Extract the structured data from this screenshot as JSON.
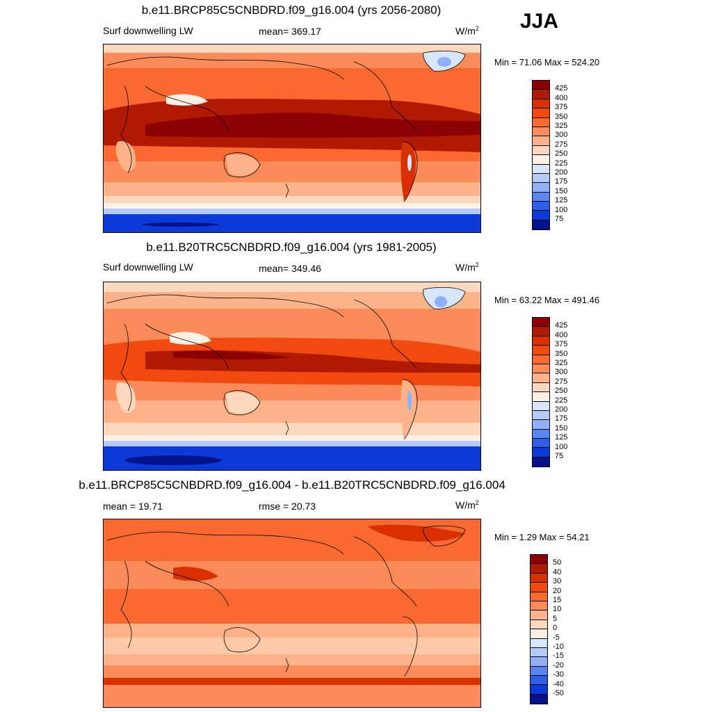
{
  "season": "JJA",
  "panels": [
    {
      "title": "b.e11.BRCP85C5CNBDRD.f09_g16.004 (yrs 2056-2080)",
      "left_label": "Surf downwelling LW",
      "mean_label": "mean= 369.17",
      "units": "W/m",
      "units_sup": "2",
      "minmax": "Min =  71.06 Max = 524.20",
      "scale": "abs"
    },
    {
      "title": "b.e11.B20TRC5CNBDRD.f09_g16.004 (yrs 1981-2005)",
      "left_label": "Surf downwelling LW",
      "mean_label": "mean= 349.46",
      "units": "W/m",
      "units_sup": "2",
      "minmax": "Min =  63.22 Max = 491.46",
      "scale": "abs"
    },
    {
      "title": "b.e11.BRCP85C5CNBDRD.f09_g16.004 - b.e11.B20TRC5CNBDRD.f09_g16.004",
      "left_label": "mean =  19.71",
      "mean_label": "rmse =  20.73",
      "units": "W/m",
      "units_sup": "2",
      "minmax": "Min =   1.29 Max =  54.21",
      "scale": "diff"
    }
  ],
  "colorbars": {
    "abs_labels": [
      "425",
      "400",
      "375",
      "350",
      "325",
      "300",
      "275",
      "250",
      "225",
      "200",
      "175",
      "150",
      "125",
      "100",
      "75"
    ],
    "diff_labels": [
      "50",
      "40",
      "30",
      "20",
      "15",
      "10",
      "5",
      "0",
      "-5",
      "-10",
      "-15",
      "-20",
      "-30",
      "-40",
      "-50"
    ],
    "colors": [
      "#8b0000",
      "#b01a00",
      "#d93000",
      "#f04a10",
      "#f86a30",
      "#fb8c5a",
      "#fdb38a",
      "#fdd8bd",
      "#fff0e6",
      "#d6e6fb",
      "#b5ccfa",
      "#8fb0f8",
      "#5a86f2",
      "#2f5ee8",
      "#0b3ad8",
      "#00138a"
    ]
  }
}
